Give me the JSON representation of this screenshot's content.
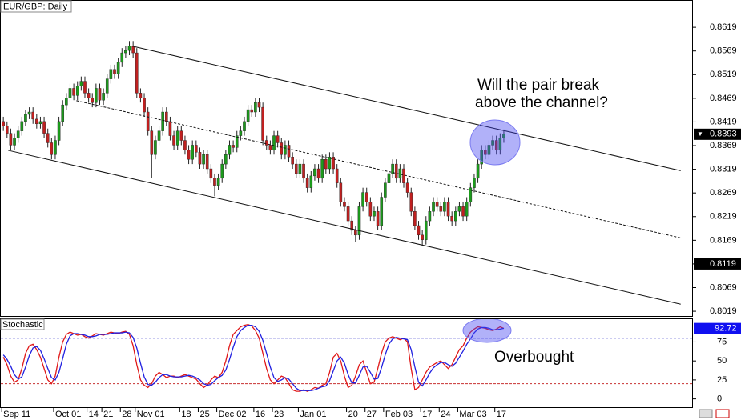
{
  "chart_data": [
    {
      "type": "candlestick",
      "title": "EUR/GBP: Daily",
      "up_color": "#1c9a1c",
      "down_color": "#c02020",
      "xlim": [
        -0.9,
        186
      ],
      "ylim": [
        0.8009,
        0.8675
      ],
      "yticks": [
        0.8619,
        0.8569,
        0.8519,
        0.8469,
        0.8419,
        0.8369,
        0.8319,
        0.8269,
        0.8219,
        0.8169,
        0.8119,
        0.8069,
        0.8019
      ],
      "last_price": 0.8393,
      "price_marker": 0.8119,
      "open": [
        0.842,
        0.841,
        0.8395,
        0.837,
        0.8385,
        0.84,
        0.842,
        0.8435,
        0.844,
        0.8425,
        0.8415,
        0.842,
        0.8395,
        0.8375,
        0.835,
        0.838,
        0.842,
        0.8455,
        0.847,
        0.849,
        0.8475,
        0.8495,
        0.8505,
        0.848,
        0.847,
        0.846,
        0.849,
        0.8465,
        0.848,
        0.851,
        0.853,
        0.852,
        0.8545,
        0.8565,
        0.857,
        0.858,
        0.8565,
        0.848,
        0.847,
        0.844,
        0.84,
        0.835,
        0.838,
        0.84,
        0.844,
        0.842,
        0.839,
        0.837,
        0.84,
        0.838,
        0.836,
        0.834,
        0.837,
        0.8355,
        0.833,
        0.835,
        0.832,
        0.83,
        0.8285,
        0.83,
        0.833,
        0.835,
        0.837,
        0.8365,
        0.839,
        0.84,
        0.842,
        0.8445,
        0.844,
        0.846,
        0.845,
        0.838,
        0.837,
        0.836,
        0.839,
        0.8375,
        0.835,
        0.837,
        0.8345,
        0.833,
        0.831,
        0.833,
        0.83,
        0.828,
        0.8305,
        0.832,
        0.83,
        0.834,
        0.832,
        0.8345,
        0.832,
        0.829,
        0.825,
        0.824,
        0.821,
        0.819,
        0.818,
        0.824,
        0.827,
        0.825,
        0.822,
        0.823,
        0.82,
        0.826,
        0.829,
        0.831,
        0.833,
        0.83,
        0.832,
        0.829,
        0.827,
        0.823,
        0.82,
        0.818,
        0.817,
        0.821,
        0.823,
        0.825,
        0.824,
        0.823,
        0.825,
        0.822,
        0.821,
        0.823,
        0.824,
        0.822,
        0.825,
        0.828,
        0.83,
        0.833,
        0.836,
        0.835,
        0.837,
        0.838,
        0.836,
        0.8385
      ],
      "high": [
        0.843,
        0.842,
        0.8405,
        0.8395,
        0.841,
        0.843,
        0.8445,
        0.845,
        0.845,
        0.8435,
        0.843,
        0.843,
        0.8405,
        0.8385,
        0.839,
        0.843,
        0.8465,
        0.848,
        0.85,
        0.85,
        0.8505,
        0.8515,
        0.8515,
        0.849,
        0.848,
        0.85,
        0.85,
        0.849,
        0.852,
        0.854,
        0.854,
        0.8555,
        0.8575,
        0.858,
        0.859,
        0.859,
        0.8575,
        0.849,
        0.848,
        0.845,
        0.841,
        0.839,
        0.841,
        0.845,
        0.845,
        0.843,
        0.84,
        0.841,
        0.841,
        0.839,
        0.837,
        0.838,
        0.838,
        0.8365,
        0.836,
        0.836,
        0.833,
        0.831,
        0.831,
        0.834,
        0.836,
        0.838,
        0.838,
        0.84,
        0.841,
        0.843,
        0.8455,
        0.8455,
        0.847,
        0.847,
        0.846,
        0.839,
        0.838,
        0.84,
        0.84,
        0.8385,
        0.838,
        0.838,
        0.8355,
        0.834,
        0.834,
        0.834,
        0.831,
        0.8315,
        0.833,
        0.833,
        0.835,
        0.835,
        0.8355,
        0.8355,
        0.833,
        0.83,
        0.826,
        0.825,
        0.822,
        0.82,
        0.825,
        0.828,
        0.828,
        0.826,
        0.824,
        0.824,
        0.827,
        0.83,
        0.832,
        0.834,
        0.834,
        0.833,
        0.833,
        0.83,
        0.828,
        0.824,
        0.821,
        0.819,
        0.822,
        0.824,
        0.826,
        0.826,
        0.825,
        0.826,
        0.826,
        0.823,
        0.824,
        0.825,
        0.825,
        0.826,
        0.829,
        0.831,
        0.834,
        0.837,
        0.837,
        0.838,
        0.839,
        0.839,
        0.8395,
        0.8403
      ],
      "low": [
        0.84,
        0.8385,
        0.836,
        0.836,
        0.8375,
        0.839,
        0.841,
        0.8425,
        0.8415,
        0.8405,
        0.8405,
        0.8385,
        0.8365,
        0.834,
        0.834,
        0.837,
        0.841,
        0.8445,
        0.846,
        0.8465,
        0.8465,
        0.8485,
        0.847,
        0.846,
        0.845,
        0.845,
        0.8455,
        0.8455,
        0.847,
        0.85,
        0.851,
        0.851,
        0.8535,
        0.8555,
        0.856,
        0.8555,
        0.847,
        0.846,
        0.843,
        0.839,
        0.83,
        0.834,
        0.837,
        0.839,
        0.841,
        0.838,
        0.836,
        0.836,
        0.837,
        0.835,
        0.833,
        0.833,
        0.8345,
        0.832,
        0.832,
        0.831,
        0.829,
        0.8262,
        0.8275,
        0.829,
        0.832,
        0.834,
        0.8355,
        0.8355,
        0.838,
        0.839,
        0.841,
        0.843,
        0.843,
        0.844,
        0.837,
        0.836,
        0.835,
        0.835,
        0.8365,
        0.834,
        0.834,
        0.8335,
        0.832,
        0.83,
        0.83,
        0.829,
        0.827,
        0.827,
        0.8295,
        0.829,
        0.829,
        0.831,
        0.831,
        0.831,
        0.828,
        0.824,
        0.823,
        0.82,
        0.818,
        0.8165,
        0.817,
        0.823,
        0.824,
        0.821,
        0.821,
        0.819,
        0.819,
        0.825,
        0.828,
        0.83,
        0.829,
        0.829,
        0.828,
        0.826,
        0.822,
        0.819,
        0.817,
        0.8158,
        0.816,
        0.82,
        0.822,
        0.823,
        0.822,
        0.822,
        0.821,
        0.82,
        0.82,
        0.822,
        0.821,
        0.821,
        0.824,
        0.827,
        0.829,
        0.832,
        0.834,
        0.834,
        0.836,
        0.835,
        0.835,
        0.8375
      ],
      "close": [
        0.841,
        0.8395,
        0.837,
        0.8385,
        0.84,
        0.842,
        0.8435,
        0.844,
        0.8425,
        0.8415,
        0.842,
        0.8395,
        0.8375,
        0.835,
        0.838,
        0.842,
        0.8455,
        0.847,
        0.849,
        0.8475,
        0.8495,
        0.8505,
        0.848,
        0.847,
        0.846,
        0.849,
        0.8465,
        0.848,
        0.851,
        0.853,
        0.852,
        0.8545,
        0.8565,
        0.857,
        0.858,
        0.8565,
        0.848,
        0.847,
        0.844,
        0.84,
        0.835,
        0.838,
        0.84,
        0.844,
        0.842,
        0.839,
        0.837,
        0.84,
        0.838,
        0.836,
        0.834,
        0.837,
        0.8355,
        0.833,
        0.835,
        0.832,
        0.83,
        0.8285,
        0.83,
        0.833,
        0.835,
        0.837,
        0.8365,
        0.839,
        0.84,
        0.842,
        0.8445,
        0.844,
        0.846,
        0.845,
        0.838,
        0.837,
        0.836,
        0.839,
        0.8375,
        0.835,
        0.837,
        0.8345,
        0.833,
        0.831,
        0.833,
        0.83,
        0.828,
        0.8305,
        0.832,
        0.83,
        0.834,
        0.832,
        0.8345,
        0.832,
        0.829,
        0.825,
        0.824,
        0.821,
        0.819,
        0.818,
        0.824,
        0.827,
        0.825,
        0.822,
        0.823,
        0.82,
        0.826,
        0.829,
        0.831,
        0.833,
        0.83,
        0.832,
        0.829,
        0.827,
        0.823,
        0.82,
        0.818,
        0.817,
        0.821,
        0.823,
        0.825,
        0.824,
        0.823,
        0.825,
        0.822,
        0.821,
        0.823,
        0.824,
        0.822,
        0.825,
        0.828,
        0.83,
        0.833,
        0.836,
        0.835,
        0.837,
        0.838,
        0.836,
        0.8385,
        0.8393
      ],
      "trendlines": [
        {
          "x": [
            34.8,
            182.7
          ],
          "y": [
            0.8579,
            0.8316
          ],
          "dash": false
        },
        {
          "x": [
            19.7,
            182.7
          ],
          "y": [
            0.8464,
            0.8174
          ],
          "dash": true
        },
        {
          "x": [
            1.3,
            182.7
          ],
          "y": [
            0.8359,
            0.8034
          ],
          "dash": false
        }
      ],
      "annotation": [
        "Will the pair break",
        "above the channel?"
      ]
    },
    {
      "type": "line",
      "title": "Stochastic",
      "ylim": [
        -12,
        105
      ],
      "yticks": [
        0,
        25,
        50,
        75
      ],
      "last_value": 92.72,
      "levels": [
        {
          "value": 80,
          "color": "#3030c8"
        },
        {
          "value": 20,
          "color": "#c83030"
        }
      ],
      "annotation": "Overbought",
      "categories": [
        "Sep 11",
        null,
        null,
        null,
        null,
        null,
        null,
        null,
        null,
        null,
        null,
        null,
        null,
        null,
        "Oct 01",
        null,
        null,
        null,
        null,
        null,
        null,
        null,
        null,
        "14",
        null,
        null,
        null,
        "21",
        null,
        null,
        null,
        null,
        "28",
        null,
        null,
        null,
        "Nov 01",
        null,
        null,
        null,
        null,
        null,
        null,
        null,
        null,
        null,
        null,
        null,
        "18",
        null,
        null,
        null,
        null,
        "25",
        null,
        null,
        null,
        null,
        "Dec 02",
        null,
        null,
        null,
        null,
        null,
        null,
        null,
        null,
        null,
        "16",
        null,
        null,
        null,
        null,
        "23",
        null,
        null,
        null,
        null,
        null,
        null,
        "Jan 01",
        null,
        null,
        null,
        null,
        null,
        null,
        null,
        null,
        null,
        null,
        null,
        null,
        "20",
        null,
        null,
        null,
        null,
        "27",
        null,
        null,
        null,
        null,
        "Feb 03",
        null,
        null,
        null,
        null,
        null,
        null,
        null,
        null,
        null,
        "17",
        null,
        null,
        null,
        null,
        "24",
        null,
        null,
        null,
        null,
        "Mar 03",
        null,
        null,
        null,
        null,
        null,
        null,
        null,
        null,
        null,
        "17",
        null,
        null
      ],
      "series": [
        {
          "color": "#e01818",
          "values": [
            55,
            45,
            30,
            22,
            25,
            40,
            60,
            70,
            72,
            65,
            55,
            40,
            25,
            20,
            30,
            55,
            75,
            85,
            88,
            86,
            84,
            85,
            82,
            80,
            83,
            86,
            85,
            84,
            86,
            88,
            87,
            86,
            88,
            89,
            85,
            70,
            45,
            25,
            18,
            15,
            20,
            30,
            35,
            32,
            28,
            30,
            30,
            28,
            30,
            32,
            30,
            28,
            26,
            20,
            15,
            18,
            25,
            30,
            28,
            35,
            50,
            70,
            85,
            90,
            95,
            97,
            98,
            96,
            90,
            80,
            60,
            40,
            25,
            20,
            25,
            30,
            28,
            20,
            12,
            10,
            10,
            12,
            10,
            12,
            15,
            14,
            18,
            20,
            35,
            55,
            60,
            50,
            30,
            15,
            18,
            30,
            45,
            50,
            35,
            20,
            22,
            40,
            60,
            75,
            80,
            82,
            80,
            78,
            80,
            75,
            40,
            12,
            15,
            25,
            35,
            42,
            45,
            48,
            50,
            45,
            40,
            45,
            55,
            65,
            70,
            80,
            88,
            92,
            95,
            94,
            93,
            91,
            90,
            92,
            95,
            92.72
          ]
        },
        {
          "color": "#2020e0",
          "values": [
            58,
            52,
            43,
            32,
            26,
            29,
            42,
            57,
            67,
            69,
            64,
            53,
            40,
            28,
            25,
            35,
            53,
            72,
            83,
            86,
            86,
            85,
            84,
            82,
            82,
            83,
            85,
            85,
            85,
            86,
            87,
            87,
            87,
            88,
            87,
            81,
            67,
            47,
            29,
            19,
            18,
            22,
            28,
            32,
            32,
            30,
            29,
            29,
            29,
            30,
            31,
            30,
            28,
            25,
            20,
            18,
            19,
            24,
            28,
            31,
            38,
            52,
            68,
            82,
            90,
            94,
            97,
            97,
            95,
            89,
            77,
            60,
            42,
            28,
            23,
            25,
            28,
            26,
            20,
            14,
            11,
            11,
            11,
            11,
            12,
            14,
            16,
            17,
            24,
            37,
            50,
            55,
            47,
            32,
            21,
            21,
            31,
            42,
            43,
            35,
            26,
            27,
            41,
            58,
            72,
            79,
            81,
            80,
            79,
            78,
            65,
            42,
            22,
            17,
            25,
            34,
            41,
            45,
            48,
            48,
            45,
            43,
            47,
            55,
            63,
            72,
            79,
            87,
            92,
            94,
            94,
            93,
            91,
            91,
            92,
            93
          ]
        }
      ]
    }
  ]
}
